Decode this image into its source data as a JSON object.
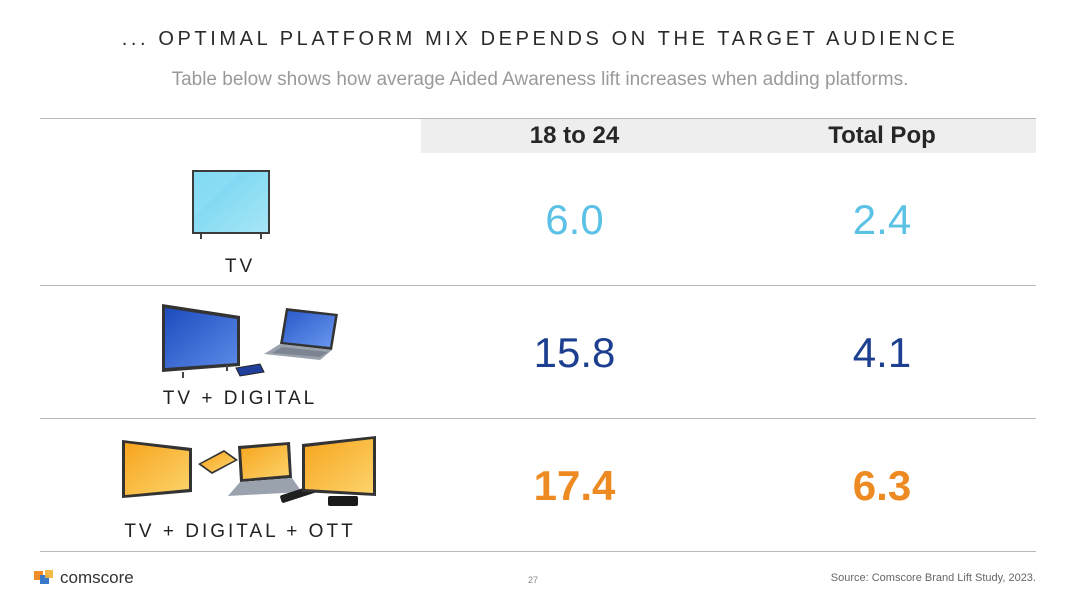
{
  "header": {
    "title": "... OPTIMAL PLATFORM MIX DEPENDS ON THE TARGET AUDIENCE",
    "subtitle": "Table below shows how average Aided Awareness lift increases when adding platforms."
  },
  "table": {
    "columns": [
      "18 to 24",
      "Total Pop"
    ],
    "rows": [
      {
        "label": "TV",
        "values": [
          "6.0",
          "2.4"
        ],
        "color": "#5bc2e6",
        "icon": "tv-icon"
      },
      {
        "label": "TV + DIGITAL",
        "values": [
          "15.8",
          "4.1"
        ],
        "color": "#1c3f8f",
        "icon": "tv-laptop-phone-icon"
      },
      {
        "label": "TV + DIGITAL + OTT",
        "values": [
          "17.4",
          "6.3"
        ],
        "color": "#ee8a22",
        "icon": "tv-devices-ott-icon"
      }
    ]
  },
  "footer": {
    "brand": "comscore",
    "page_number": "27",
    "source": "Source: Comscore Brand Lift Study, 2023."
  }
}
